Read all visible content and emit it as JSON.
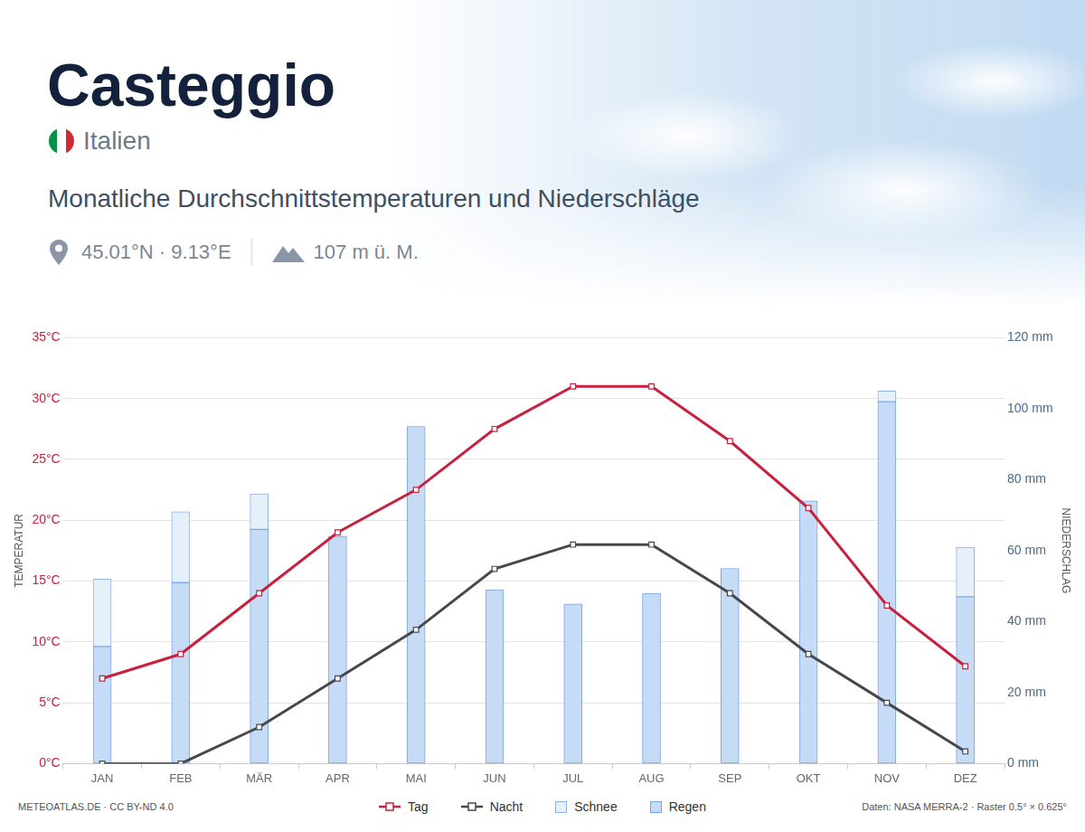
{
  "chart_data": {
    "type": "climate",
    "title": "Casteggio",
    "country": "Italien",
    "subtitle": "Monatliche Durchschnittstemperaturen und Niederschläge",
    "coordinates": "45.01°N · 9.13°E",
    "elevation": "107 m ü. M.",
    "source": "METEOATLAS.DE · CC BY-ND 4.0",
    "credit": "Daten: NASA MERRA-2 · Raster 0.5° × 0.625°",
    "categories": [
      "JAN",
      "FEB",
      "MÄR",
      "APR",
      "MAI",
      "JUN",
      "JUL",
      "AUG",
      "SEP",
      "OKT",
      "NOV",
      "DEZ"
    ],
    "y_label": "TEMPERATUR",
    "y2_label": "NIEDERSCHLAG",
    "ylim": [
      0,
      35
    ],
    "yticks": [
      {
        "value": 0,
        "label": "0°C"
      },
      {
        "value": 5,
        "label": "5°C"
      },
      {
        "value": 10,
        "label": "10°C"
      },
      {
        "value": 15,
        "label": "15°C"
      },
      {
        "value": 20,
        "label": "20°C"
      },
      {
        "value": 25,
        "label": "25°C"
      },
      {
        "value": 30,
        "label": "30°C"
      },
      {
        "value": 35,
        "label": "35°C"
      }
    ],
    "y2lim": [
      0,
      120
    ],
    "y2ticks": [
      {
        "value": 0,
        "label": "0 mm"
      },
      {
        "value": 20,
        "label": "20 mm"
      },
      {
        "value": 40,
        "label": "40 mm"
      },
      {
        "value": 60,
        "label": "60 mm"
      },
      {
        "value": 80,
        "label": "80 mm"
      },
      {
        "value": 100,
        "label": "100 mm"
      },
      {
        "value": 120,
        "label": "120 mm"
      }
    ],
    "grid": true,
    "stacked": true,
    "legend": "bottom",
    "series": [
      {
        "name": "Tag",
        "type": "line",
        "color": "#c8203e",
        "marker": "square",
        "axis": "y",
        "values": [
          7,
          9,
          14,
          19,
          22.5,
          27.5,
          31,
          31,
          26.5,
          21,
          13,
          8
        ]
      },
      {
        "name": "Nacht",
        "type": "line",
        "color": "#47484d",
        "marker": "square",
        "axis": "y",
        "values": [
          0,
          0,
          3,
          7,
          11,
          16,
          18,
          18,
          14,
          9,
          5,
          1
        ]
      },
      {
        "name": "Schnee",
        "type": "bar",
        "color": "#e6f0fb",
        "axis": "y2",
        "values": [
          19,
          20,
          10,
          0,
          0,
          0,
          0,
          0,
          0,
          0,
          3,
          14
        ]
      },
      {
        "name": "Regen",
        "type": "bar",
        "color": "#c6dcf6",
        "axis": "y2",
        "values": [
          33,
          51,
          66,
          64,
          95,
          49,
          45,
          48,
          55,
          74,
          102,
          47
        ]
      }
    ]
  }
}
